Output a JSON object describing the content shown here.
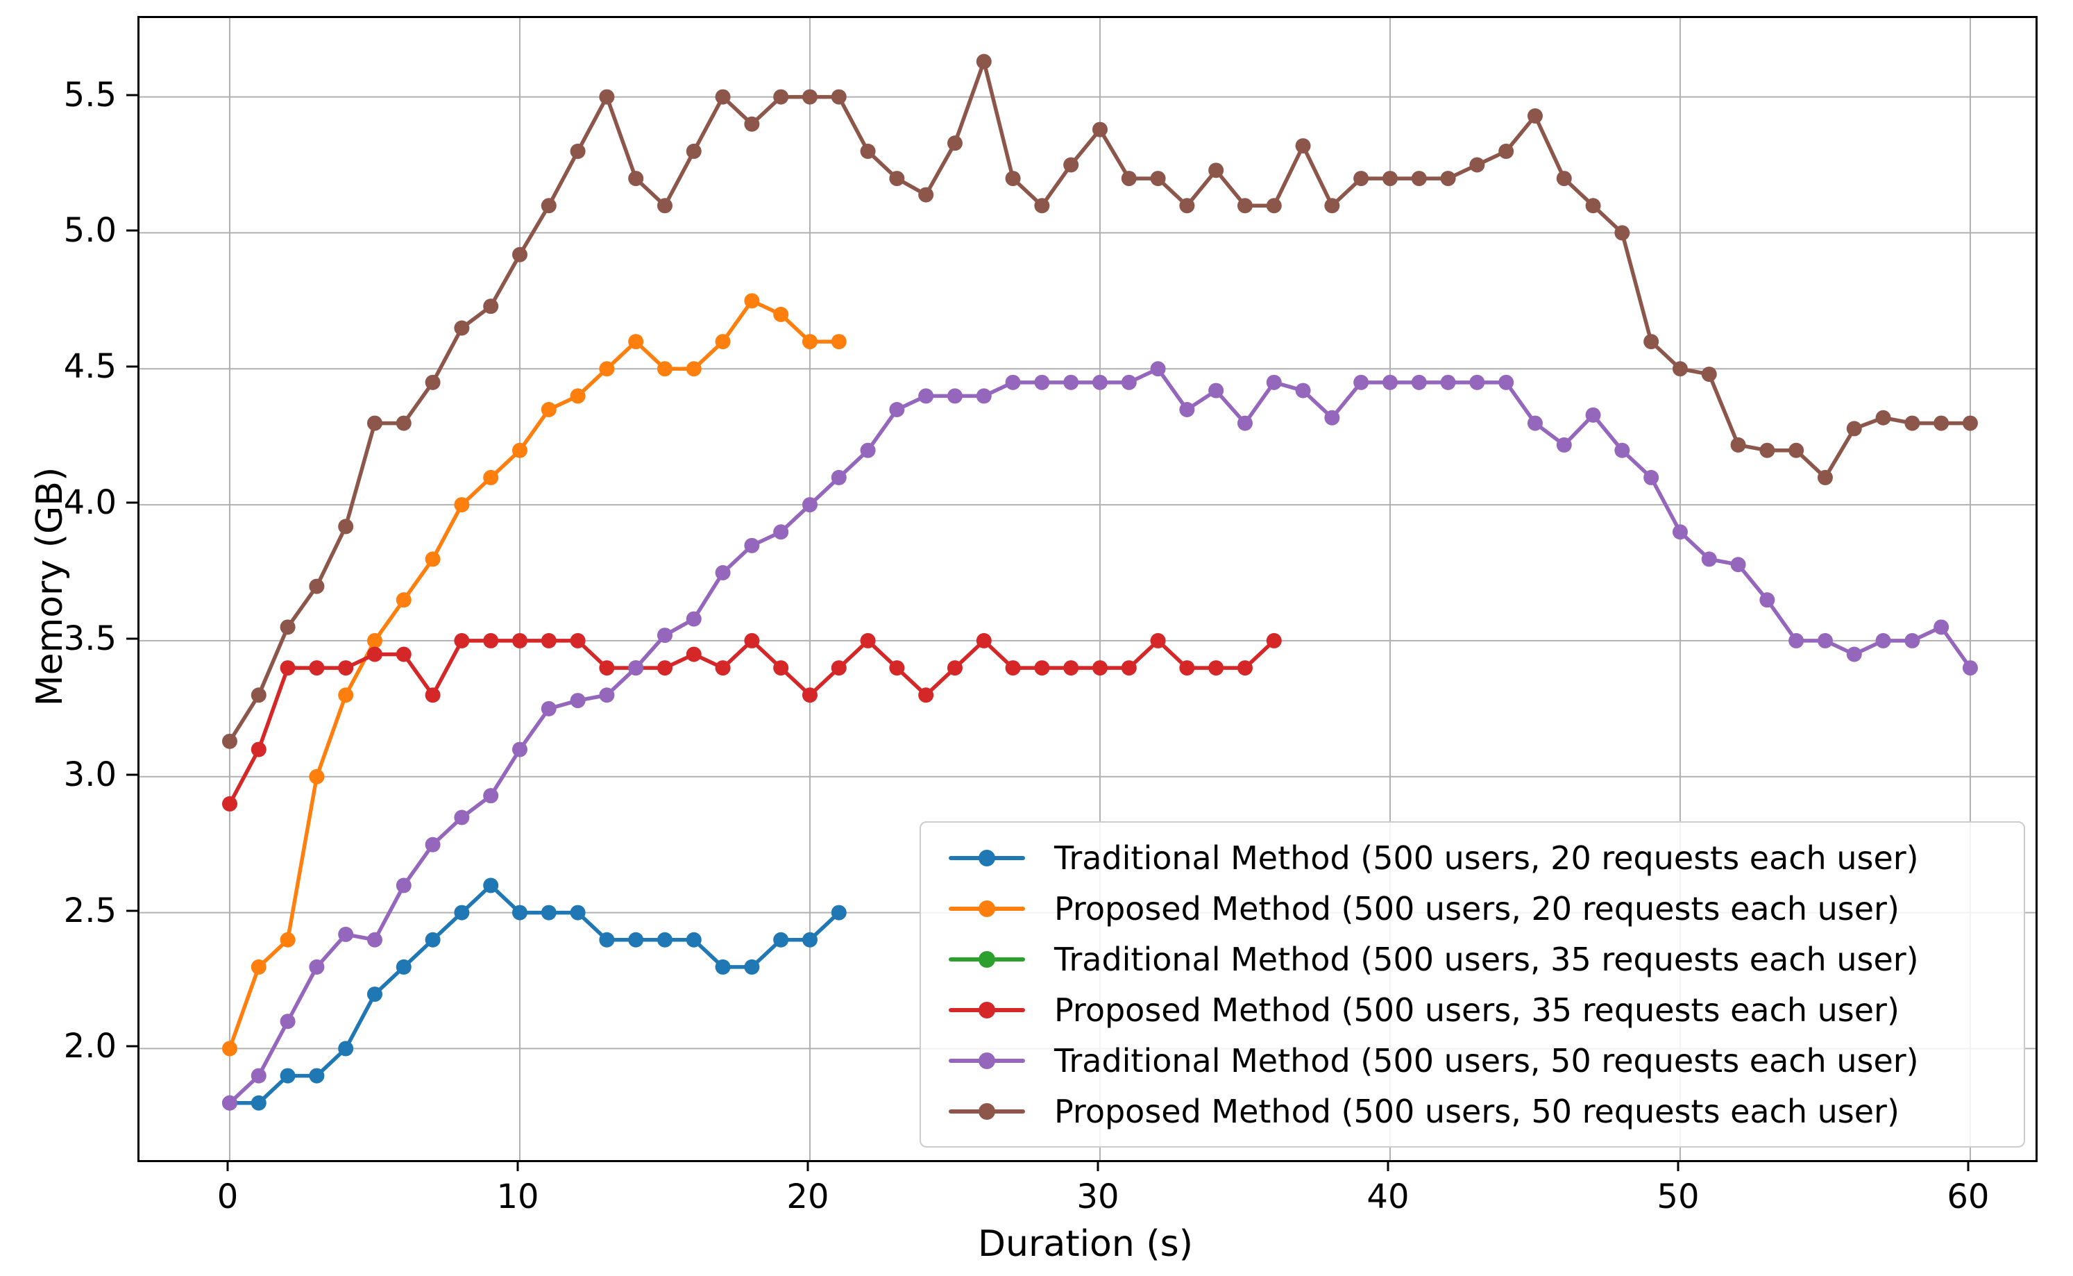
{
  "figure": {
    "background": "#ffffff",
    "grid_color": "#b0b0b0",
    "spine_color": "#000000",
    "xlabel": "Duration (s)",
    "ylabel": "Memory (GB)"
  },
  "chart_data": {
    "type": "line",
    "title": "",
    "xlabel": "Duration (s)",
    "ylabel": "Memory (GB)",
    "grid": true,
    "legend_position": "lower right",
    "xlim": [
      -3.11,
      62.25
    ],
    "ylim": [
      1.59,
      5.79
    ],
    "x_tick_labels": [
      "0",
      "10",
      "20",
      "30",
      "40",
      "50",
      "60"
    ],
    "x_ticks": [
      0,
      10,
      20,
      30,
      40,
      50,
      60
    ],
    "y_tick_labels": [
      "2.0",
      "2.5",
      "3.0",
      "3.5",
      "4.0",
      "4.5",
      "5.0",
      "5.5"
    ],
    "y_ticks": [
      2.0,
      2.5,
      3.0,
      3.5,
      4.0,
      4.5,
      5.0,
      5.5
    ],
    "x_step": 1,
    "series": [
      {
        "name": "Traditional Method (500 users, 20 requests each user)",
        "color": "#1f77b4",
        "values": [
          1.8,
          1.8,
          1.9,
          1.9,
          2.0,
          2.2,
          2.3,
          2.4,
          2.5,
          2.6,
          2.5,
          2.5,
          2.5,
          2.4,
          2.4,
          2.4,
          2.4,
          2.3,
          2.3,
          2.4,
          2.4,
          2.5
        ]
      },
      {
        "name": "Proposed Method (500 users, 20 requests each user)",
        "color": "#ff7f0e",
        "values": [
          2.0,
          2.3,
          2.4,
          3.0,
          3.3,
          3.5,
          3.65,
          3.8,
          4.0,
          4.1,
          4.2,
          4.35,
          4.4,
          4.5,
          4.6,
          4.5,
          4.5,
          4.6,
          4.75,
          4.7,
          4.6,
          4.6
        ]
      },
      {
        "name": "Traditional Method (500 users, 35 requests each user)",
        "color": "#2ca02c",
        "values": []
      },
      {
        "name": "Proposed Method (500 users, 35 requests each user)",
        "color": "#d62728",
        "values": [
          2.9,
          3.1,
          3.4,
          3.4,
          3.4,
          3.45,
          3.45,
          3.3,
          3.5,
          3.5,
          3.5,
          3.5,
          3.5,
          3.4,
          3.4,
          3.4,
          3.45,
          3.4,
          3.5,
          3.4,
          3.3,
          3.4,
          3.5,
          3.4,
          3.3,
          3.4,
          3.5,
          3.4,
          3.4,
          3.4,
          3.4,
          3.4,
          3.5,
          3.4,
          3.4,
          3.4,
          3.5
        ]
      },
      {
        "name": "Traditional Method (500 users, 50 requests each user)",
        "color": "#9467bd",
        "values": [
          1.8,
          1.9,
          2.1,
          2.3,
          2.42,
          2.4,
          2.6,
          2.75,
          2.85,
          2.93,
          3.1,
          3.25,
          3.28,
          3.3,
          3.4,
          3.52,
          3.58,
          3.75,
          3.85,
          3.9,
          4.0,
          4.1,
          4.2,
          4.35,
          4.4,
          4.4,
          4.4,
          4.45,
          4.45,
          4.45,
          4.45,
          4.45,
          4.5,
          4.35,
          4.42,
          4.3,
          4.45,
          4.42,
          4.32,
          4.45,
          4.45,
          4.45,
          4.45,
          4.45,
          4.45,
          4.3,
          4.22,
          4.33,
          4.2,
          4.1,
          3.9,
          3.8,
          3.78,
          3.65,
          3.5,
          3.5,
          3.45,
          3.5,
          3.5,
          3.55,
          3.4
        ]
      },
      {
        "name": "Proposed Method (500 users, 50 requests each user)",
        "color": "#8c564b",
        "values": [
          3.13,
          3.3,
          3.55,
          3.7,
          3.92,
          4.3,
          4.3,
          4.45,
          4.65,
          4.73,
          4.92,
          5.1,
          5.3,
          5.5,
          5.2,
          5.1,
          5.3,
          5.5,
          5.4,
          5.5,
          5.5,
          5.5,
          5.3,
          5.2,
          5.14,
          5.33,
          5.63,
          5.2,
          5.1,
          5.25,
          5.38,
          5.2,
          5.2,
          5.1,
          5.23,
          5.1,
          5.1,
          5.32,
          5.1,
          5.2,
          5.2,
          5.2,
          5.2,
          5.25,
          5.3,
          5.43,
          5.2,
          5.1,
          5.0,
          4.6,
          4.5,
          4.48,
          4.22,
          4.2,
          4.2,
          4.1,
          4.28,
          4.32,
          4.3,
          4.3,
          4.3
        ]
      }
    ]
  }
}
